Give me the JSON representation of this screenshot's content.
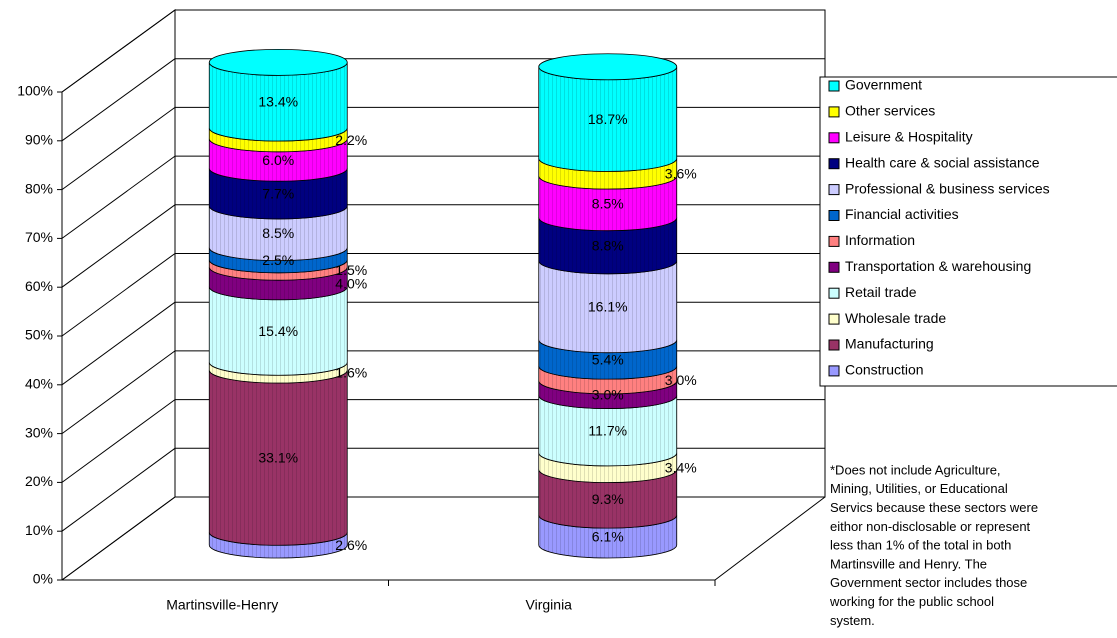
{
  "chart_data": {
    "type": "stacked-cylinder",
    "categories": [
      "Martinsville-Henry",
      "Virginia"
    ],
    "series": [
      {
        "name": "Construction",
        "color": "#9999ff",
        "values": [
          2.6,
          6.1
        ],
        "value_labels": [
          "2.6%",
          "6.1%"
        ]
      },
      {
        "name": "Manufacturing",
        "color": "#993366",
        "values": [
          33.1,
          9.3
        ],
        "value_labels": [
          "33.1%",
          "9.3%"
        ]
      },
      {
        "name": "Wholesale trade",
        "color": "#ffffcc",
        "values": [
          1.6,
          3.4
        ],
        "value_labels": [
          "1.6%",
          "3.4%"
        ]
      },
      {
        "name": "Retail trade",
        "color": "#ccffff",
        "values": [
          15.4,
          11.7
        ],
        "value_labels": [
          "15.4%",
          "11.7%"
        ]
      },
      {
        "name": "Transportation & warehousing",
        "color": "#800080",
        "values": [
          4.0,
          3.0
        ],
        "value_labels": [
          "4.0%",
          "3.0%"
        ]
      },
      {
        "name": "Information",
        "color": "#ff8080",
        "values": [
          1.5,
          3.0
        ],
        "value_labels": [
          "1.5%",
          "3.0%"
        ]
      },
      {
        "name": "Financial activities",
        "color": "#0066cc",
        "values": [
          2.5,
          5.4
        ],
        "value_labels": [
          "2.5%",
          "5.4%"
        ]
      },
      {
        "name": "Professional & business services",
        "color": "#ccccff",
        "values": [
          8.5,
          16.1
        ],
        "value_labels": [
          "8.5%",
          "16.1%"
        ]
      },
      {
        "name": "Health care & social assistance",
        "color": "#000080",
        "values": [
          7.7,
          8.8
        ],
        "value_labels": [
          "7.7%",
          "8.8%"
        ]
      },
      {
        "name": "Leisure & Hospitality",
        "color": "#ff00ff",
        "values": [
          6.0,
          8.5
        ],
        "value_labels": [
          "6.0%",
          "8.5%"
        ]
      },
      {
        "name": "Other services",
        "color": "#ffff00",
        "values": [
          2.2,
          3.6
        ],
        "value_labels": [
          "2.2%",
          "3.6%"
        ]
      },
      {
        "name": "Government",
        "color": "#00ffff",
        "values": [
          13.4,
          18.7
        ],
        "value_labels": [
          "13.4%",
          "18.7%"
        ]
      }
    ],
    "ylim": [
      0,
      100
    ],
    "yticks": [
      {
        "value": 0,
        "label": "0%"
      },
      {
        "value": 10,
        "label": "10%"
      },
      {
        "value": 20,
        "label": "20%"
      },
      {
        "value": 30,
        "label": "30%"
      },
      {
        "value": 40,
        "label": "40%"
      },
      {
        "value": 50,
        "label": "50%"
      },
      {
        "value": 60,
        "label": "60%"
      },
      {
        "value": 70,
        "label": "70%"
      },
      {
        "value": 80,
        "label": "80%"
      },
      {
        "value": 90,
        "label": "90%"
      },
      {
        "value": 100,
        "label": "100%"
      }
    ],
    "grid": true,
    "legend": "right",
    "annotation": [
      "*Does not include Agriculture,",
      "Mining, Utilities, or Educational",
      "Servics because these sectors were",
      "eithor non-disclosable or represent",
      "less than 1% of the total in both",
      "Martinsville and Henry.  The",
      "Government sector includes those",
      "working for the public school",
      "system."
    ]
  }
}
